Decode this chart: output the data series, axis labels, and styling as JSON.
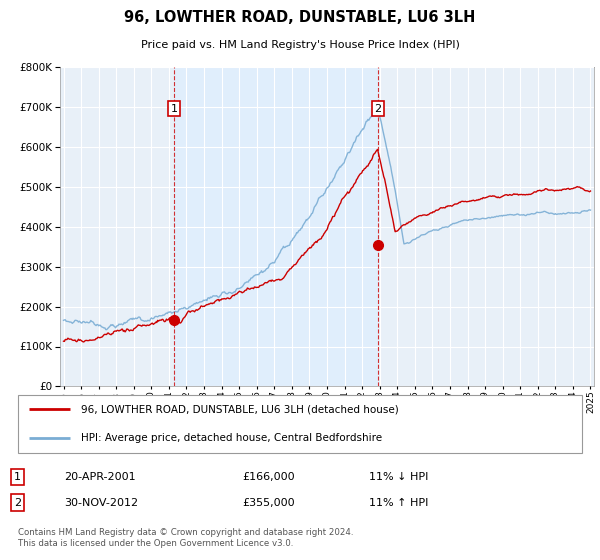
{
  "title": "96, LOWTHER ROAD, DUNSTABLE, LU6 3LH",
  "subtitle": "Price paid vs. HM Land Registry's House Price Index (HPI)",
  "legend_line1": "96, LOWTHER ROAD, DUNSTABLE, LU6 3LH (detached house)",
  "legend_line2": "HPI: Average price, detached house, Central Bedfordshire",
  "footer": "Contains HM Land Registry data © Crown copyright and database right 2024.\nThis data is licensed under the Open Government Licence v3.0.",
  "transaction1_label": "1",
  "transaction1_date": "20-APR-2001",
  "transaction1_price": "£166,000",
  "transaction1_hpi": "11% ↓ HPI",
  "transaction2_label": "2",
  "transaction2_date": "30-NOV-2012",
  "transaction2_price": "£355,000",
  "transaction2_hpi": "11% ↑ HPI",
  "transaction1_year": 2001.3,
  "transaction1_value": 166000,
  "transaction2_year": 2012.9,
  "transaction2_value": 355000,
  "red_color": "#cc0000",
  "blue_color": "#7aadd4",
  "highlight_bg": "#ddeeff",
  "plot_bg_color": "#e8f0f8",
  "grid_color": "#ffffff",
  "ylim": [
    0,
    800000
  ],
  "xlim": [
    1994.8,
    2025.2
  ]
}
